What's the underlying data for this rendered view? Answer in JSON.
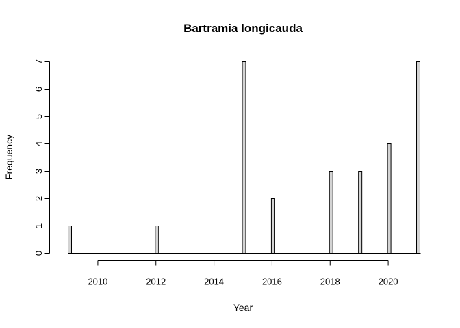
{
  "chart_data": {
    "type": "bar",
    "title": "Bartramia longicauda",
    "xlabel": "Year",
    "ylabel": "Frequency",
    "xlim": [
      2009,
      2021
    ],
    "ylim": [
      0,
      7
    ],
    "x_ticks": [
      2010,
      2012,
      2014,
      2016,
      2018,
      2020
    ],
    "y_ticks": [
      0,
      1,
      2,
      3,
      4,
      5,
      6,
      7
    ],
    "x": [
      2009,
      2012,
      2015,
      2016,
      2018,
      2019,
      2020,
      2021
    ],
    "values": [
      1,
      1,
      7,
      2,
      3,
      3,
      4,
      7
    ],
    "bar_fill": "#d3d3d3",
    "grid": false
  }
}
